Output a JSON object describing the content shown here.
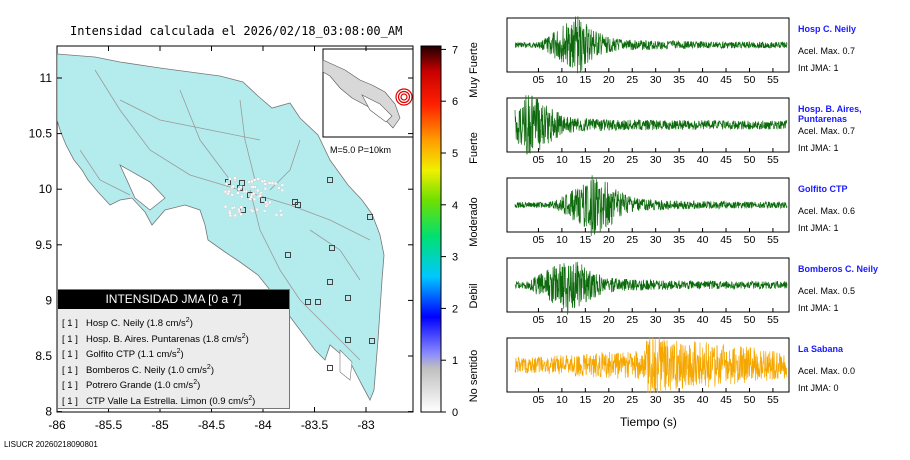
{
  "map": {
    "title": "Intensidad calculada el 2026/02/18_03:08:00_AM",
    "y_ticks": [
      "11",
      "10.5",
      "10",
      "9.5",
      "9",
      "8.5",
      "8"
    ],
    "x_ticks": [
      "-86",
      "-85.5",
      "-85",
      "-84.5",
      "-84",
      "-83.5",
      "-83"
    ],
    "inset_caption": "M=5.0 P=10km",
    "footer": "LISUCR 20260218090801",
    "colors": {
      "land": "#b4ecee",
      "station": "#444444"
    }
  },
  "colorbar": {
    "ticks": [
      "0",
      "1",
      "2",
      "3",
      "4",
      "5",
      "6",
      "7"
    ],
    "categories": [
      "No sentido",
      "Debil",
      "Moderado",
      "Fuerte",
      "Muy Fuerte"
    ]
  },
  "legend": {
    "title": "INTENSIDAD JMA [0 a 7]",
    "items": [
      {
        "level": "[ 1 ]",
        "text": "Hosp C. Neily (1.8 cm/s",
        "sup": "2",
        "end": ")"
      },
      {
        "level": "[ 1 ]",
        "text": "Hosp. B. Aires. Puntarenas (1.8 cm/s",
        "sup": "2",
        "end": ")"
      },
      {
        "level": "[ 1 ]",
        "text": "Golfito CTP (1.1 cm/s",
        "sup": "2",
        "end": ")"
      },
      {
        "level": "[ 1 ]",
        "text": "Bomberos C. Neily (1.0 cm/s",
        "sup": "2",
        "end": ")"
      },
      {
        "level": "[ 1 ]",
        "text": "Potrero Grande (1.0 cm/s",
        "sup": "2",
        "end": ")"
      },
      {
        "level": "[ 1 ]",
        "text": "CTP Valle La Estrella. Limon (0.9 cm/s",
        "sup": "2",
        "end": ")"
      }
    ]
  },
  "traces": {
    "time_ticks": [
      "05",
      "10",
      "15",
      "20",
      "25",
      "30",
      "35",
      "40",
      "45",
      "50",
      "55"
    ],
    "xlabel": "Tiempo (s)",
    "items": [
      {
        "name": "Hosp C. Neily",
        "acel": "Acel. Max. 0.7",
        "int": "Int JMA: 1",
        "color": "#0c6a0c"
      },
      {
        "name": "Hosp. B. Aires, Puntarenas",
        "acel": "Acel. Max. 0.7",
        "int": "Int JMA: 1",
        "color": "#0c6a0c"
      },
      {
        "name": "Golfito CTP",
        "acel": "Acel. Max. 0.6",
        "int": "Int JMA: 1",
        "color": "#0c6a0c"
      },
      {
        "name": "Bomberos C. Neily",
        "acel": "Acel. Max. 0.5",
        "int": "Int JMA: 1",
        "color": "#0c6a0c"
      },
      {
        "name": "La Sabana",
        "acel": "Acel. Max. 0.0",
        "int": "Int JMA: 0",
        "color": "#f5a700"
      }
    ]
  }
}
